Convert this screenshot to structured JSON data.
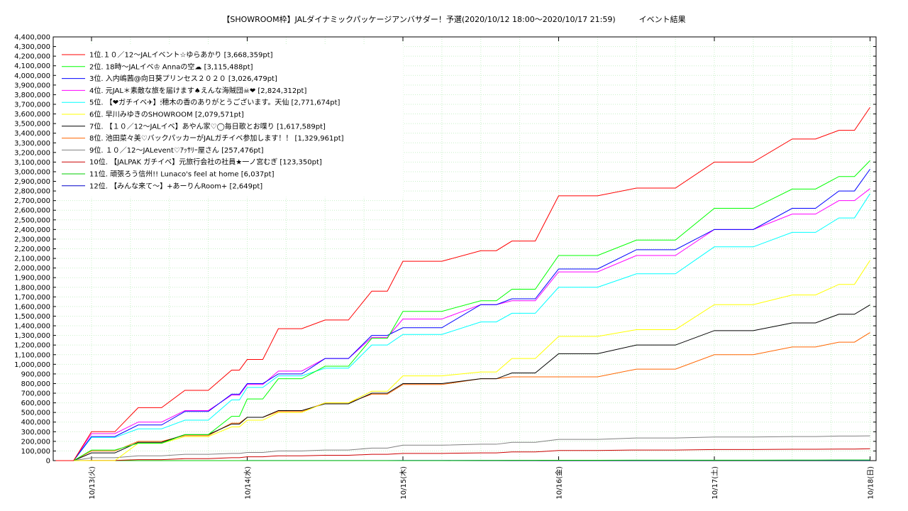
{
  "chart_data": {
    "type": "line",
    "title": "【SHOWROOM枠】JALダイナミックパッケージアンバサダー！予選(2020/10/12 18:00～2020/10/17 21:59)　　　イベント結果",
    "xlabel": "",
    "ylabel": "",
    "x_ticks": [
      "10/13(火)",
      "10/14(水)",
      "10/15(木)",
      "10/16(金)",
      "10/17(土)",
      "10/18(日)"
    ],
    "x_range": [
      0,
      5.05
    ],
    "ylim": [
      0,
      4400000
    ],
    "y_ticks": [
      0,
      100000,
      200000,
      300000,
      400000,
      500000,
      600000,
      700000,
      800000,
      900000,
      1000000,
      1100000,
      1200000,
      1300000,
      1400000,
      1500000,
      1600000,
      1700000,
      1800000,
      1900000,
      2000000,
      2100000,
      2200000,
      2300000,
      2400000,
      2500000,
      2600000,
      2700000,
      2800000,
      2900000,
      3000000,
      3100000,
      3200000,
      3300000,
      3400000,
      3500000,
      3600000,
      3700000,
      3800000,
      3900000,
      4000000,
      4100000,
      4200000,
      4300000,
      4400000
    ],
    "y_tick_labels": [
      "0",
      "100,000",
      "200,000",
      "300,000",
      "400,000",
      "500,000",
      "600,000",
      "700,000",
      "800,000",
      "900,000",
      "1,000,000",
      "1,100,000",
      "1,200,000",
      "1,300,000",
      "1,400,000",
      "1,500,000",
      "1,600,000",
      "1,700,000",
      "1,800,000",
      "1,900,000",
      "2,000,000",
      "2,100,000",
      "2,200,000",
      "2,300,000",
      "2,400,000",
      "2,500,000",
      "2,600,000",
      "2,700,000",
      "2,800,000",
      "2,900,000",
      "3,000,000",
      "3,100,000",
      "3,200,000",
      "3,300,000",
      "3,400,000",
      "3,500,000",
      "3,600,000",
      "3,700,000",
      "3,800,000",
      "3,900,000",
      "4,000,000",
      "4,100,000",
      "4,200,000",
      "4,300,000",
      "4,400,000"
    ],
    "grid": true,
    "legend_position": "top-left",
    "series": [
      {
        "name": "1位.１０／12～JALイベント☆ゆらあかり [3,668,359pt]",
        "color": "#ff0000",
        "x": [
          -0.23,
          0,
          0.3,
          0.6,
          0.9,
          1.0,
          1.2,
          1.5,
          1.8,
          2.0,
          2.5,
          2.7,
          3.0,
          3.5,
          4.0,
          4.5,
          4.8,
          5.0
        ],
        "y": [
          0,
          300000,
          550000,
          730000,
          940000,
          1050000,
          1370000,
          1460000,
          1760000,
          2070000,
          2180000,
          2280000,
          2750000,
          2830000,
          3100000,
          3340000,
          3430000,
          3668359
        ]
      },
      {
        "name": "2位. 18時～JALイベ♔ Annaの空☁ [3,115,488pt]",
        "color": "#00ff00",
        "x": [
          -0.23,
          0,
          0.3,
          0.6,
          0.9,
          1.0,
          1.2,
          1.5,
          1.8,
          2.0,
          2.5,
          2.7,
          3.0,
          3.5,
          4.0,
          4.5,
          4.8,
          5.0
        ],
        "y": [
          0,
          110000,
          180000,
          270000,
          460000,
          640000,
          850000,
          980000,
          1270000,
          1550000,
          1660000,
          1780000,
          2130000,
          2290000,
          2620000,
          2820000,
          2950000,
          3115488
        ]
      },
      {
        "name": "3位. 入内嶋茜@向日葵プリンセス２０２０ [3,026,479pt]",
        "color": "#0000ff",
        "x": [
          -0.23,
          0,
          0.3,
          0.6,
          0.9,
          1.0,
          1.2,
          1.5,
          1.8,
          2.0,
          2.5,
          2.7,
          3.0,
          3.5,
          4.0,
          4.5,
          4.8,
          5.0
        ],
        "y": [
          0,
          250000,
          370000,
          510000,
          690000,
          800000,
          900000,
          1060000,
          1300000,
          1380000,
          1620000,
          1680000,
          1990000,
          2190000,
          2400000,
          2620000,
          2800000,
          3026479
        ]
      },
      {
        "name": "4位. 元JAL＊素敵な旅を届けます♠えんな海賊団☠❤ [2,824,312pt]",
        "color": "#ff00ff",
        "x": [
          -0.23,
          0,
          0.3,
          0.6,
          0.9,
          1.0,
          1.2,
          1.5,
          1.8,
          2.0,
          2.5,
          2.7,
          3.0,
          3.5,
          4.0,
          4.5,
          4.8,
          5.0
        ],
        "y": [
          0,
          280000,
          400000,
          520000,
          680000,
          790000,
          930000,
          1060000,
          1280000,
          1470000,
          1620000,
          1660000,
          1960000,
          2130000,
          2400000,
          2560000,
          2700000,
          2824312
        ]
      },
      {
        "name": "5位. 【❤ガチイベ✈】🕯穂木の香のありがとうございます。天仙 [2,771,674pt]",
        "color": "#00ffff",
        "x": [
          -0.23,
          0,
          0.3,
          0.6,
          0.9,
          1.0,
          1.2,
          1.5,
          1.8,
          2.0,
          2.5,
          2.7,
          3.0,
          3.5,
          4.0,
          4.5,
          4.8,
          5.0
        ],
        "y": [
          0,
          240000,
          330000,
          420000,
          630000,
          760000,
          880000,
          960000,
          1200000,
          1310000,
          1440000,
          1530000,
          1800000,
          1940000,
          2220000,
          2370000,
          2520000,
          2771674
        ]
      },
      {
        "name": "6位. 早川みゆきのSHOWROOM [2,079,571pt]",
        "color": "#ffff00",
        "x": [
          -0.23,
          0,
          0.3,
          0.6,
          0.9,
          1.0,
          1.2,
          1.5,
          1.8,
          2.0,
          2.5,
          2.7,
          3.0,
          3.5,
          4.0,
          4.5,
          4.8,
          5.0
        ],
        "y": [
          0,
          0,
          180000,
          250000,
          350000,
          420000,
          500000,
          600000,
          720000,
          880000,
          920000,
          1060000,
          1290000,
          1360000,
          1620000,
          1720000,
          1830000,
          2079571
        ]
      },
      {
        "name": "7位. 【１０／12～JALイベ】あやん家♡◯毎日歌とお喋り [1,617,589pt]",
        "color": "#000000",
        "x": [
          -0.23,
          0,
          0.3,
          0.6,
          0.9,
          1.0,
          1.2,
          1.5,
          1.8,
          2.0,
          2.5,
          2.7,
          3.0,
          3.5,
          4.0,
          4.5,
          4.8,
          5.0
        ],
        "y": [
          0,
          80000,
          190000,
          270000,
          380000,
          450000,
          520000,
          590000,
          700000,
          800000,
          850000,
          910000,
          1110000,
          1200000,
          1350000,
          1430000,
          1520000,
          1617589
        ]
      },
      {
        "name": "8位. 池田菜々美♡バックパッカーがJALガチイベ参加します！！ [1,329,961pt]",
        "color": "#ff6600",
        "x": [
          -0.23,
          0,
          0.3,
          0.6,
          0.9,
          1.0,
          1.2,
          1.5,
          1.8,
          2.0,
          2.5,
          2.7,
          3.0,
          3.5,
          4.0,
          4.5,
          4.8,
          5.0
        ],
        "y": [
          0,
          100000,
          200000,
          260000,
          390000,
          450000,
          510000,
          600000,
          690000,
          790000,
          850000,
          870000,
          870000,
          950000,
          1100000,
          1180000,
          1230000,
          1329961
        ]
      },
      {
        "name": "9位. １０／12～JALevent♡ｱｯｻﾘｰ屋さん [257,476pt]",
        "color": "#808080",
        "x": [
          -0.23,
          0,
          0.3,
          0.6,
          0.9,
          1.0,
          1.2,
          1.5,
          1.8,
          2.0,
          2.5,
          2.7,
          3.0,
          3.5,
          4.0,
          4.5,
          4.8,
          5.0
        ],
        "y": [
          0,
          30000,
          50000,
          65000,
          75000,
          85000,
          100000,
          110000,
          130000,
          160000,
          170000,
          190000,
          220000,
          235000,
          245000,
          250000,
          255000,
          257476
        ]
      },
      {
        "name": "10位. 【JALPAK ガチイベ】元旅行会社の社員★一ノ宮むぎ [123,350pt]",
        "color": "#cc0000",
        "x": [
          -0.23,
          0,
          0.3,
          0.6,
          0.9,
          1.0,
          1.2,
          1.5,
          1.8,
          2.0,
          2.5,
          2.7,
          3.0,
          3.5,
          4.0,
          4.5,
          4.8,
          5.0
        ],
        "y": [
          0,
          2000,
          10000,
          20000,
          30000,
          40000,
          50000,
          55000,
          65000,
          75000,
          80000,
          90000,
          105000,
          110000,
          115000,
          118000,
          120000,
          123350
        ]
      },
      {
        "name": "11位. 頑張ろう信州!! Lunaco's feel at home [6,037pt]",
        "color": "#00cc00",
        "x": [
          -0.23,
          0,
          0.3,
          0.6,
          0.9,
          1.0,
          1.2,
          1.5,
          1.8,
          2.0,
          2.5,
          2.7,
          3.0,
          3.5,
          4.0,
          4.5,
          4.8,
          5.0
        ],
        "y": [
          0,
          0,
          0,
          0,
          0,
          0,
          0,
          0,
          0,
          0,
          2000,
          3000,
          4000,
          4500,
          5000,
          5500,
          6000,
          6037
        ]
      },
      {
        "name": "12位. 【みんな来て～】+あーりんRoom+ [2,649pt]",
        "color": "#0000cc",
        "x": [
          -0.23,
          0,
          0.3,
          0.6,
          0.9,
          1.0,
          1.2,
          1.5,
          1.8,
          2.0,
          2.5,
          2.7,
          3.0,
          3.5,
          4.0,
          4.5,
          4.8,
          5.0
        ],
        "y": [
          0,
          0,
          0,
          0,
          0,
          500,
          800,
          1000,
          1200,
          1400,
          1600,
          1800,
          2000,
          2200,
          2400,
          2500,
          2600,
          2649
        ]
      }
    ]
  }
}
